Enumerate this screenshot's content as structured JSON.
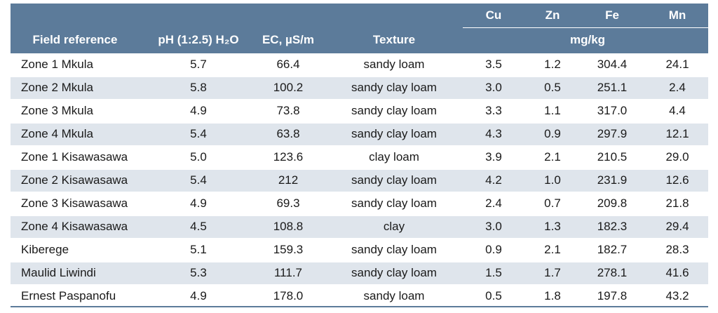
{
  "table": {
    "header": {
      "columns": [
        "Field reference",
        "pH (1:2.5) H₂O",
        "EC, µS/m",
        "Texture",
        "Cu",
        "Zn",
        "Fe",
        "Mn"
      ],
      "unit": "mg/kg"
    },
    "rows": [
      [
        "Zone 1 Mkula",
        "5.7",
        "66.4",
        "sandy loam",
        "3.5",
        "1.2",
        "304.4",
        "24.1"
      ],
      [
        "Zone 2 Mkula",
        "5.8",
        "100.2",
        "sandy clay loam",
        "3.0",
        "0.5",
        "251.1",
        "2.4"
      ],
      [
        "Zone 3 Mkula",
        "4.9",
        "73.8",
        "sandy clay loam",
        "3.3",
        "1.1",
        "317.0",
        "4.4"
      ],
      [
        "Zone 4 Mkula",
        "5.4",
        "63.8",
        "sandy clay loam",
        "4.3",
        "0.9",
        "297.9",
        "12.1"
      ],
      [
        "Zone 1 Kisawasawa",
        "5.0",
        "123.6",
        "clay loam",
        "3.9",
        "2.1",
        "210.5",
        "29.0"
      ],
      [
        "Zone 2 Kisawasawa",
        "5.4",
        "212",
        "sandy clay loam",
        "4.2",
        "1.0",
        "231.9",
        "12.6"
      ],
      [
        "Zone 3 Kisawasawa",
        "4.9",
        "69.3",
        "sandy clay loam",
        "2.4",
        "0.7",
        "209.8",
        "21.8"
      ],
      [
        "Zone 4 Kisawasawa",
        "4.5",
        "108.8",
        "clay",
        "3.0",
        "1.3",
        "182.3",
        "29.4"
      ],
      [
        "Kiberege",
        "5.1",
        "159.3",
        "sandy clay loam",
        "0.9",
        "2.1",
        "182.7",
        "28.3"
      ],
      [
        "Maulid Liwindi",
        "5.3",
        "111.7",
        "sandy clay loam",
        "1.5",
        "1.7",
        "278.1",
        "41.6"
      ],
      [
        "Ernest Paspanofu",
        "4.9",
        "178.0",
        "sandy loam",
        "0.5",
        "1.8",
        "197.8",
        "43.2"
      ]
    ]
  }
}
